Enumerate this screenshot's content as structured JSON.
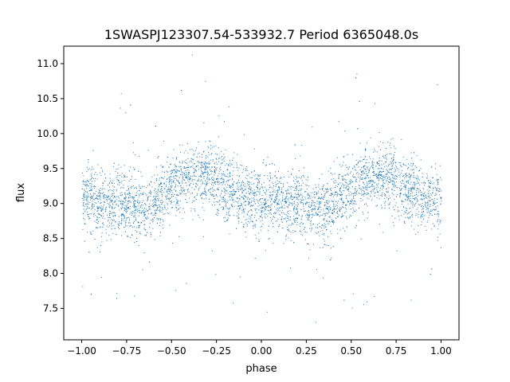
{
  "chart_data": {
    "type": "scatter",
    "title": "1SWASPJ123307.54-533932.7 Period 6365048.0s",
    "xlabel": "phase",
    "ylabel": "flux",
    "xlim": [
      -1.1,
      1.1
    ],
    "ylim": [
      7.05,
      11.25
    ],
    "x_ticks": [
      -1.0,
      -0.75,
      -0.5,
      -0.25,
      0.0,
      0.25,
      0.5,
      0.75,
      1.0
    ],
    "x_tick_labels": [
      "−1.00",
      "−0.75",
      "−0.50",
      "−0.25",
      "0.00",
      "0.25",
      "0.50",
      "0.75",
      "1.00"
    ],
    "y_ticks": [
      7.5,
      8.0,
      8.5,
      9.0,
      9.5,
      10.0,
      10.5,
      11.0
    ],
    "y_tick_labels": [
      "7.5",
      "8.0",
      "8.5",
      "9.0",
      "9.5",
      "10.0",
      "10.5",
      "11.0"
    ],
    "grid": false,
    "marker_color": "#1f77b4",
    "series": [
      {
        "x": [
          -1.0,
          -0.95,
          -0.9,
          -0.85,
          -0.8,
          -0.75,
          -0.7,
          -0.65,
          -0.6,
          -0.55,
          -0.5,
          -0.45,
          -0.4,
          -0.35,
          -0.3,
          -0.25,
          -0.2,
          -0.15,
          -0.1,
          -0.05,
          0.0,
          0.05,
          0.1,
          0.15,
          0.2,
          0.25,
          0.3,
          0.35,
          0.4,
          0.45,
          0.5,
          0.55,
          0.6,
          0.65,
          0.7,
          0.75,
          0.8,
          0.85,
          0.9,
          0.95,
          1.0
        ],
        "y": [
          9.05,
          9.1,
          9.0,
          8.95,
          9.05,
          9.0,
          8.95,
          8.9,
          9.0,
          9.15,
          9.2,
          9.3,
          9.35,
          9.4,
          9.4,
          9.3,
          9.2,
          9.15,
          9.1,
          9.05,
          9.05,
          9.1,
          9.0,
          8.95,
          9.05,
          9.0,
          8.95,
          8.9,
          9.0,
          9.15,
          9.2,
          9.3,
          9.35,
          9.4,
          9.4,
          9.3,
          9.2,
          9.15,
          9.1,
          9.05,
          9.05
        ],
        "spread": 0.42
      }
    ]
  }
}
